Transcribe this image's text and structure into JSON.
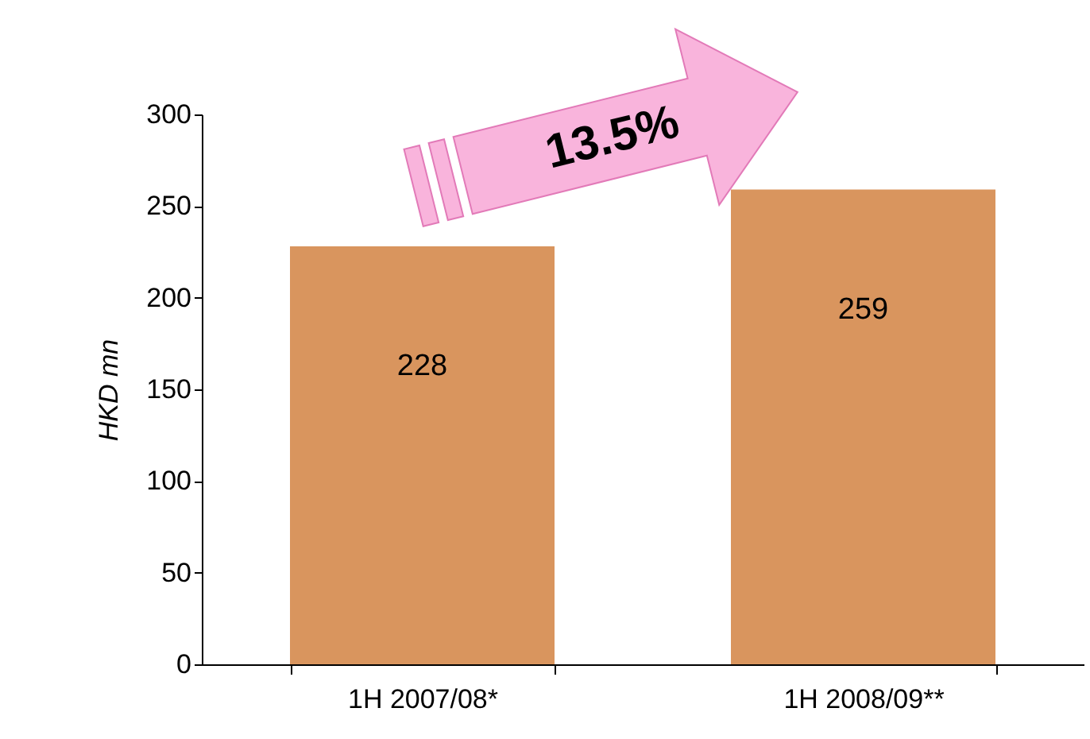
{
  "chart_data": {
    "type": "bar",
    "ylabel": "HKD mn",
    "categories": [
      "1H 2007/08*",
      "1H 2008/09**"
    ],
    "values": [
      228,
      259
    ],
    "color": "#d9955e",
    "ylim": [
      0,
      300
    ],
    "yticks": [
      0,
      50,
      100,
      150,
      200,
      250,
      300
    ],
    "grid": false,
    "data_labels": true,
    "annotations": [
      "13.5%"
    ]
  }
}
